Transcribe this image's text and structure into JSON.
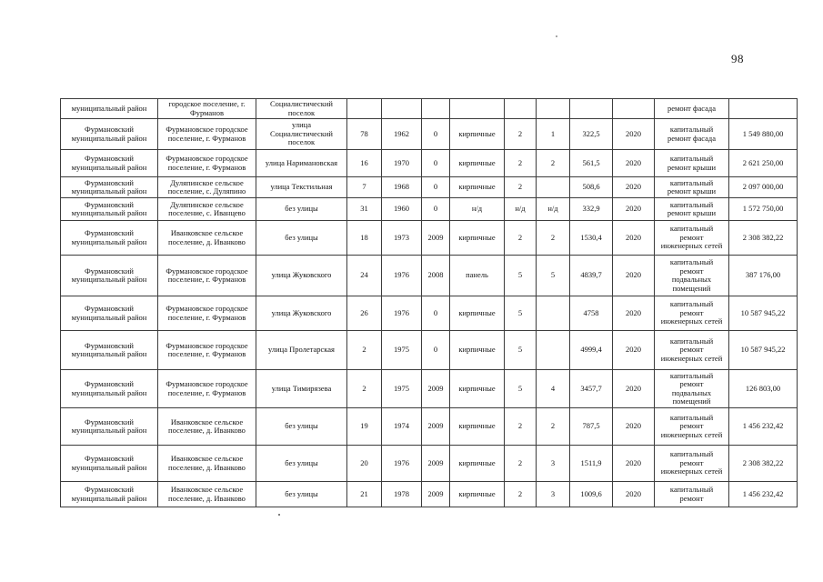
{
  "page": {
    "number": "98"
  },
  "table": {
    "rows": [
      [
        "муниципальный район",
        "городское поселение, г. Фурманов",
        "Социалистический поселок",
        "",
        "",
        "",
        "",
        "",
        "",
        "",
        "",
        "ремонт фасада",
        ""
      ],
      [
        "Фурмановский муниципальный район",
        "Фурмановское городское поселение, г. Фурманов",
        "улица Социалистический поселок",
        "78",
        "1962",
        "0",
        "кирпичные",
        "2",
        "1",
        "322,5",
        "2020",
        "капитальный ремонт фасада",
        "1 549 880,00"
      ],
      [
        "Фурмановский муниципальный район",
        "Фурмановское городское поселение, г. Фурманов",
        "улица Наримановская",
        "16",
        "1970",
        "0",
        "кирпичные",
        "2",
        "2",
        "561,5",
        "2020",
        "капитальный ремонт крыши",
        "2 621 250,00"
      ],
      [
        "Фурмановский муниципальный район",
        "Дуляпинское сельское поселение, с. Дуляпино",
        "улица Текстильная",
        "7",
        "1968",
        "0",
        "кирпичные",
        "2",
        "",
        "508,6",
        "2020",
        "капитальный ремонт крыши",
        "2 097 000,00"
      ],
      [
        "Фурмановский муниципальный район",
        "Дуляпинское сельское поселение, с. Иванцево",
        "без улицы",
        "31",
        "1960",
        "0",
        "н/д",
        "н/д",
        "н/д",
        "332,9",
        "2020",
        "капитальный ремонт крыши",
        "1 572 750,00"
      ],
      [
        "Фурмановский муниципальный район",
        "Иванковское сельское поселение, д. Иванково",
        "без улицы",
        "18",
        "1973",
        "2009",
        "кирпичные",
        "2",
        "2",
        "1530,4",
        "2020",
        "капитальный ремонт инженерных сетей",
        "2 308 382,22"
      ],
      [
        "Фурмановский муниципальный район",
        "Фурмановское городское поселение, г. Фурманов",
        "улица Жуковского",
        "24",
        "1976",
        "2008",
        "панель",
        "5",
        "5",
        "4839,7",
        "2020",
        "капитальный ремонт подвальных помещений",
        "387 176,00"
      ],
      [
        "Фурмановский муниципальный район",
        "Фурмановское городское поселение, г. Фурманов",
        "улица Жуковского",
        "26",
        "1976",
        "0",
        "кирпичные",
        "5",
        "",
        "4758",
        "2020",
        "капитальный ремонт инженерных сетей",
        "10 587 945,22"
      ],
      [
        "Фурмановский муниципальный район",
        "Фурмановское городское поселение, г. Фурманов",
        "улица Пролетарская",
        "2",
        "1975",
        "0",
        "кирпичные",
        "5",
        "",
        "4999,4",
        "2020",
        "капитальный ремонт инженерных сетей",
        "10 587 945,22"
      ],
      [
        "Фурмановский муниципальный район",
        "Фурмановское городское поселение, г. Фурманов",
        "улица Тимирязева",
        "2",
        "1975",
        "2009",
        "кирпичные",
        "5",
        "4",
        "3457,7",
        "2020",
        "капитальный ремонт подвальных помещений",
        "126 803,00"
      ],
      [
        "Фурмановский муниципальный район",
        "Иванковское сельское поселение, д. Иванково",
        "без улицы",
        "19",
        "1974",
        "2009",
        "кирпичные",
        "2",
        "2",
        "787,5",
        "2020",
        "капитальный ремонт инженерных сетей",
        "1 456 232,42"
      ],
      [
        "Фурмановский муниципальный район",
        "Иванковское сельское поселение, д. Иванково",
        "без улицы",
        "20",
        "1976",
        "2009",
        "кирпичные",
        "2",
        "3",
        "1511,9",
        "2020",
        "капитальный ремонт инженерных сетей",
        "2 308 382,22"
      ],
      [
        "Фурмановский муниципальный район",
        "Иванковское сельское поселение, д. Иванково",
        "без улицы",
        "21",
        "1978",
        "2009",
        "кирпичные",
        "2",
        "3",
        "1009,6",
        "2020",
        "капитальный ремонт",
        "1 456 232,42"
      ]
    ]
  }
}
